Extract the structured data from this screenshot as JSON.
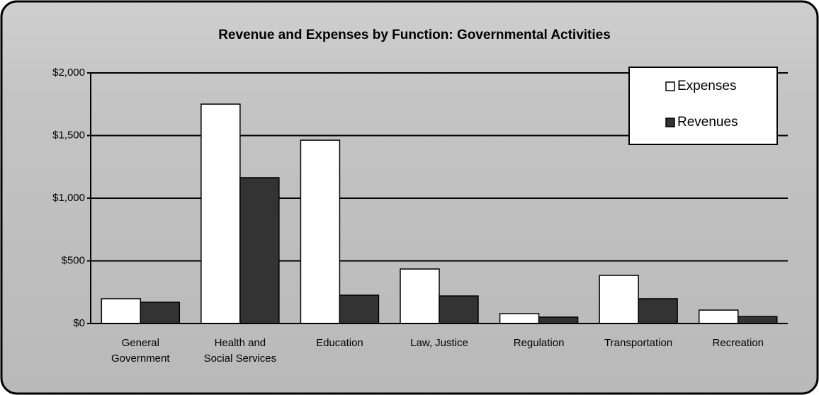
{
  "chart_data": {
    "type": "bar",
    "title": "Revenue and Expenses by Function:  Governmental Activities",
    "categories": [
      "General Government",
      "Health and Social Services",
      "Education",
      "Law, Justice",
      "Regulation",
      "Transportation",
      "Recreation"
    ],
    "series": [
      {
        "name": "Expenses",
        "color": "#ffffff",
        "values": [
          198,
          1751,
          1463,
          435,
          79,
          384,
          107
        ]
      },
      {
        "name": "Revenues",
        "color": "#333333",
        "values": [
          170,
          1164,
          226,
          220,
          51,
          198,
          56
        ]
      }
    ],
    "ylim": [
      0,
      2000
    ],
    "yticks": [
      {
        "value": 0,
        "label": "$0"
      },
      {
        "value": 500,
        "label": "$500"
      },
      {
        "value": 1000,
        "label": "$1,000"
      },
      {
        "value": 1500,
        "label": "$1,500"
      },
      {
        "value": 2000,
        "label": "$2,000"
      }
    ],
    "grid": true,
    "legend": "top-right"
  }
}
